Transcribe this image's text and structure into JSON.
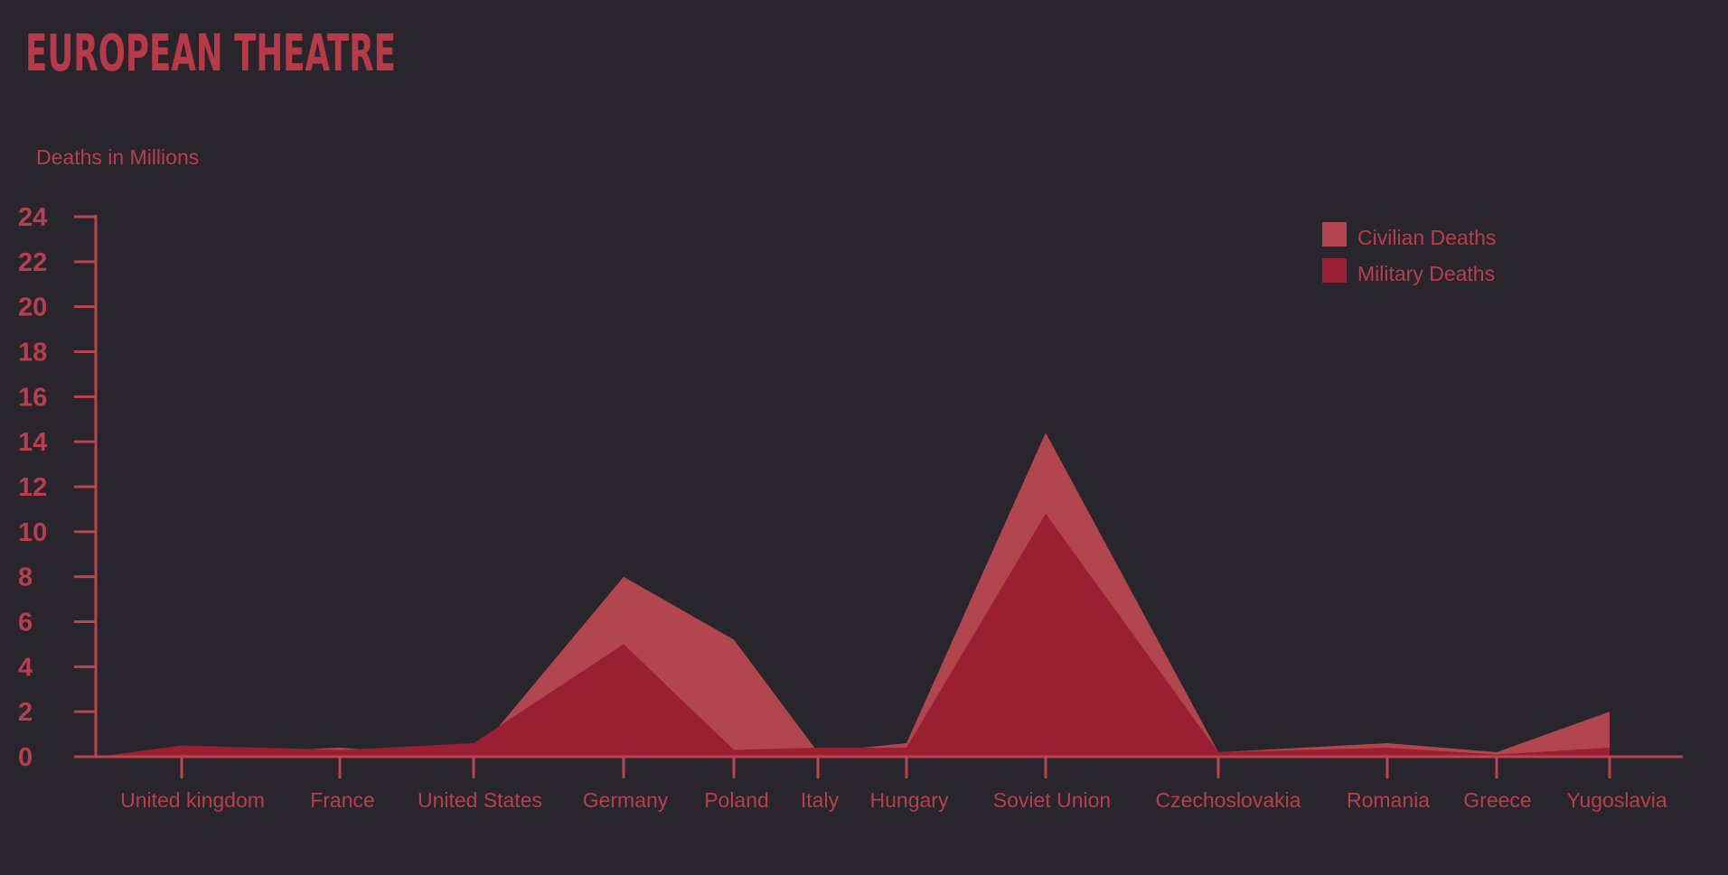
{
  "chart_data": {
    "type": "area",
    "title": "EUROPEAN THEATRE",
    "ylabel": "Deaths in Millions",
    "xlabel": "",
    "ylim": [
      0,
      24
    ],
    "yticks": [
      0,
      2,
      4,
      6,
      8,
      10,
      12,
      14,
      16,
      18,
      20,
      22,
      24
    ],
    "categories": [
      "United kingdom",
      "France",
      "United States",
      "Germany",
      "Poland",
      "Italy",
      "Hungary",
      "Soviet Union",
      "Czechoslovakia",
      "Romania",
      "Greece",
      "Yugoslavia"
    ],
    "series": [
      {
        "name": "Civilian Deaths",
        "values": [
          0.1,
          0.4,
          0.0,
          8.0,
          5.2,
          0.2,
          0.6,
          14.4,
          0.2,
          0.6,
          0.2,
          2.0
        ]
      },
      {
        "name": "Military Deaths",
        "values": [
          0.5,
          0.3,
          0.6,
          5.0,
          0.3,
          0.4,
          0.4,
          10.8,
          0.2,
          0.4,
          0.1,
          0.4
        ]
      }
    ],
    "colors": {
      "background": "#28252c",
      "text": "#b8404e",
      "axis": "#b84550",
      "civilian": "#b2464f",
      "military": "#9a1f32"
    },
    "legend_position": "top-right",
    "grid": false
  }
}
